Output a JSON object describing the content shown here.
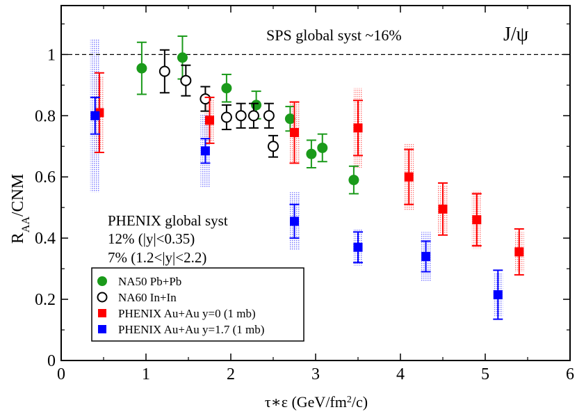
{
  "chart_data": {
    "type": "scatter",
    "xlabel": "τ∗ε (GeV/fm²/c)",
    "ylabel": "R_AA/CNM",
    "xlim": [
      0,
      6
    ],
    "ylim": [
      0,
      1.16
    ],
    "x_ticks": [
      0,
      1,
      2,
      3,
      4,
      5,
      6
    ],
    "y_ticks": [
      0,
      0.2,
      0.4,
      0.6,
      0.8,
      1
    ],
    "x_tick_labels": [
      "0",
      "1",
      "2",
      "3",
      "4",
      "5",
      "6"
    ],
    "y_tick_labels": [
      "0",
      "0.2",
      "0.4",
      "0.6",
      "0.8",
      "1"
    ],
    "reference_line": 1.0,
    "annotations": {
      "sps": "SPS global syst ~16%",
      "particle": "J/ψ",
      "phenix_syst_1": "PHENIX global syst",
      "phenix_syst_2": "12% (|y|<0.35)",
      "phenix_syst_3": "7% (1.2<|y|<2.2)"
    },
    "legend_position": "bottom-left",
    "series": [
      {
        "name": "NA50 Pb+Pb",
        "color": "#1a9a1a",
        "marker": "filled-circle",
        "points": [
          {
            "x": 0.95,
            "y": 0.955,
            "err": 0.085
          },
          {
            "x": 1.43,
            "y": 0.99,
            "err": 0.07
          },
          {
            "x": 1.95,
            "y": 0.89,
            "err": 0.045
          },
          {
            "x": 2.3,
            "y": 0.835,
            "err": 0.045
          },
          {
            "x": 2.7,
            "y": 0.79,
            "err": 0.04
          },
          {
            "x": 2.95,
            "y": 0.675,
            "err": 0.045
          },
          {
            "x": 3.08,
            "y": 0.695,
            "err": 0.045
          },
          {
            "x": 3.45,
            "y": 0.59,
            "err": 0.045
          }
        ]
      },
      {
        "name": "NA60 In+In",
        "color": "#000000",
        "marker": "open-circle",
        "points": [
          {
            "x": 1.22,
            "y": 0.945,
            "err": 0.07
          },
          {
            "x": 1.47,
            "y": 0.915,
            "err": 0.05
          },
          {
            "x": 1.7,
            "y": 0.855,
            "err": 0.04
          },
          {
            "x": 1.95,
            "y": 0.795,
            "err": 0.04
          },
          {
            "x": 2.12,
            "y": 0.8,
            "err": 0.04
          },
          {
            "x": 2.27,
            "y": 0.8,
            "err": 0.04
          },
          {
            "x": 2.45,
            "y": 0.8,
            "err": 0.04
          },
          {
            "x": 2.5,
            "y": 0.7,
            "err": 0.035
          }
        ]
      },
      {
        "name": "PHENIX Au+Au y=0 (1 mb)",
        "color": "#ff0000",
        "marker": "filled-square",
        "points": [
          {
            "x": 0.45,
            "y": 0.81,
            "err": 0.13,
            "syst": 0.12
          },
          {
            "x": 1.75,
            "y": 0.785,
            "err": 0.075,
            "syst": 0.07
          },
          {
            "x": 2.75,
            "y": 0.745,
            "err": 0.1,
            "syst": 0.1
          },
          {
            "x": 3.5,
            "y": 0.76,
            "err": 0.09,
            "syst": 0.13
          },
          {
            "x": 4.1,
            "y": 0.6,
            "err": 0.09,
            "syst": 0.11
          },
          {
            "x": 4.5,
            "y": 0.495,
            "err": 0.085,
            "syst": 0.08
          },
          {
            "x": 4.9,
            "y": 0.46,
            "err": 0.085,
            "syst": 0.095
          },
          {
            "x": 5.4,
            "y": 0.355,
            "err": 0.075,
            "syst": 0.065
          }
        ]
      },
      {
        "name": "PHENIX Au+Au y=1.7 (1 mb)",
        "color": "#0000ff",
        "marker": "filled-square",
        "points": [
          {
            "x": 0.4,
            "y": 0.8,
            "err": 0.06,
            "syst": 0.25
          },
          {
            "x": 1.7,
            "y": 0.685,
            "err": 0.04,
            "syst": 0.12
          },
          {
            "x": 2.75,
            "y": 0.455,
            "err": 0.055,
            "syst": 0.095
          },
          {
            "x": 3.5,
            "y": 0.37,
            "err": 0.05,
            "syst": 0.06
          },
          {
            "x": 4.3,
            "y": 0.34,
            "err": 0.05,
            "syst": 0.08
          },
          {
            "x": 5.15,
            "y": 0.215,
            "err": 0.08,
            "syst": 0.07
          }
        ]
      }
    ]
  }
}
